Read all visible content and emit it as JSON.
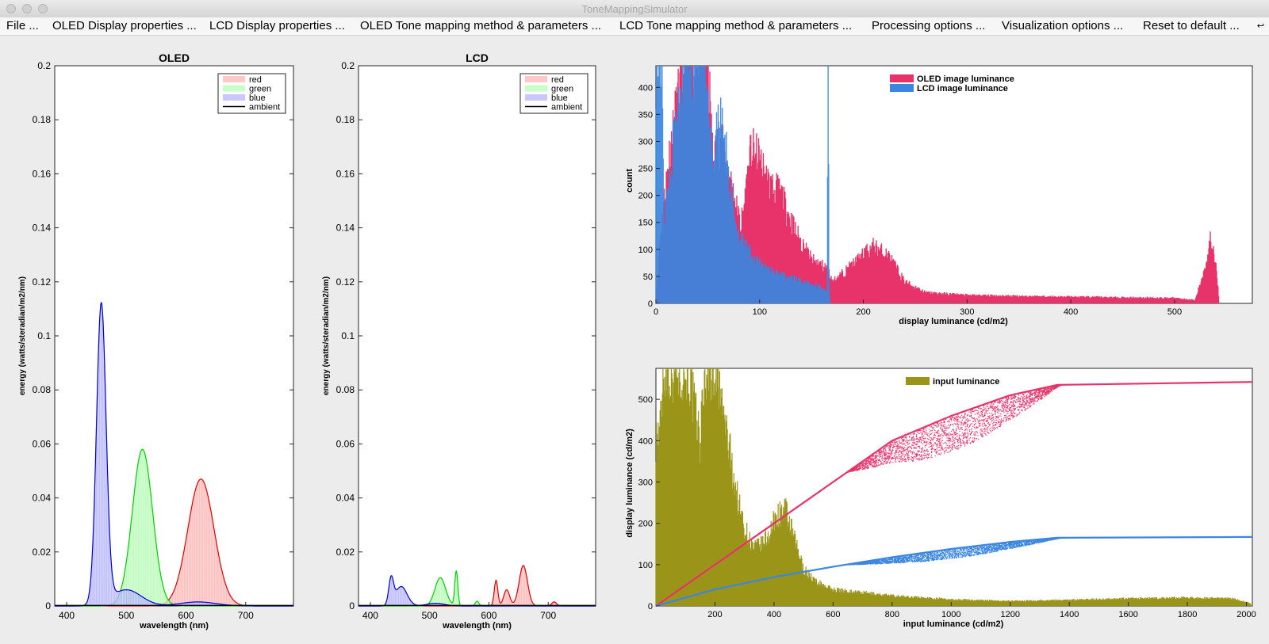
{
  "window": {
    "title": "ToneMappingSimulator"
  },
  "menu": {
    "items": [
      "File ...",
      "OLED Display properties ...",
      "LCD Display properties ...",
      "OLED Tone mapping method & parameters ...",
      "LCD Tone mapping method & parameters ...",
      "Processing options ...",
      "Visualization options ...",
      "Reset to default ..."
    ],
    "more": "↩"
  },
  "colors": {
    "red_fill": "#ffc8c8",
    "green_fill": "#c8ffc8",
    "blue_fill": "#c8c8ff",
    "oled": "#e8336a",
    "lcd": "#3a86e0",
    "input": "#9a9518"
  },
  "chart_data": [
    {
      "type": "area",
      "title": "OLED",
      "xlabel": "wavelength (nm)",
      "ylabel": "energy (watts/steradian/m2/nm)",
      "xlim": [
        380,
        780
      ],
      "ylim": [
        0,
        0.2
      ],
      "xticks": [
        "400",
        "500",
        "600",
        "700"
      ],
      "yticks": [
        "0",
        "0.02",
        "0.04",
        "0.06",
        "0.08",
        "0.1",
        "0.12",
        "0.14",
        "0.16",
        "0.18",
        "0.2"
      ],
      "legend": [
        "red",
        "green",
        "blue",
        "ambient"
      ],
      "legend_position": "top-right",
      "series": [
        {
          "name": "red",
          "color": "#e00000",
          "peaks": [
            {
              "center": 625,
              "height": 0.047,
              "width": 22
            }
          ]
        },
        {
          "name": "green",
          "color": "#00d000",
          "peaks": [
            {
              "center": 527,
              "height": 0.058,
              "width": 17
            }
          ]
        },
        {
          "name": "blue",
          "color": "#0000cc",
          "peaks": [
            {
              "center": 458,
              "height": 0.111,
              "width": 8
            },
            {
              "center": 500,
              "height": 0.006,
              "width": 25
            },
            {
              "center": 620,
              "height": 0.0015,
              "width": 30
            }
          ]
        },
        {
          "name": "ambient",
          "color": "#000000",
          "peaks": []
        }
      ]
    },
    {
      "type": "area",
      "title": "LCD",
      "xlabel": "wavelength (nm)",
      "ylabel": "energy (watts/steradian/m2/nm)",
      "xlim": [
        380,
        780
      ],
      "ylim": [
        0,
        0.2
      ],
      "xticks": [
        "400",
        "500",
        "600",
        "700"
      ],
      "yticks": [
        "0",
        "0.02",
        "0.04",
        "0.06",
        "0.08",
        "0.1",
        "0.12",
        "0.14",
        "0.16",
        "0.18",
        "0.2"
      ],
      "legend": [
        "red",
        "green",
        "blue",
        "ambient"
      ],
      "legend_position": "top-right",
      "series": [
        {
          "name": "red",
          "color": "#e00000",
          "peaks": [
            {
              "center": 612,
              "height": 0.0095,
              "width": 3
            },
            {
              "center": 630,
              "height": 0.006,
              "width": 5
            },
            {
              "center": 658,
              "height": 0.015,
              "width": 7
            },
            {
              "center": 710,
              "height": 0.0015,
              "width": 4
            }
          ]
        },
        {
          "name": "green",
          "color": "#00d000",
          "peaks": [
            {
              "center": 518,
              "height": 0.0105,
              "width": 9
            },
            {
              "center": 545,
              "height": 0.013,
              "width": 2.5
            },
            {
              "center": 580,
              "height": 0.0018,
              "width": 3
            }
          ]
        },
        {
          "name": "blue",
          "color": "#0000cc",
          "peaks": [
            {
              "center": 435,
              "height": 0.0095,
              "width": 4
            },
            {
              "center": 452,
              "height": 0.0072,
              "width": 10
            },
            {
              "center": 510,
              "height": 0.001,
              "width": 15
            }
          ]
        },
        {
          "name": "ambient",
          "color": "#000000",
          "peaks": []
        }
      ]
    },
    {
      "type": "bar",
      "xlabel": "display luminance (cd/m2)",
      "ylabel": "count",
      "xlim": [
        0,
        575
      ],
      "ylim": [
        0,
        440
      ],
      "xticks": [
        "0",
        "100",
        "200",
        "300",
        "400",
        "500"
      ],
      "yticks": [
        "0",
        "50",
        "100",
        "150",
        "200",
        "250",
        "300",
        "350",
        "400"
      ],
      "legend": [
        "OLED image luminance",
        "LCD image luminance"
      ],
      "legend_position": "top-center",
      "series": [
        {
          "name": "OLED image luminance",
          "color": "#e8336a",
          "profile": [
            [
              0,
              0
            ],
            [
              4,
              120
            ],
            [
              12,
              260
            ],
            [
              22,
              380
            ],
            [
              32,
              440
            ],
            [
              50,
              440
            ],
            [
              55,
              260
            ],
            [
              62,
              300
            ],
            [
              70,
              240
            ],
            [
              82,
              140
            ],
            [
              92,
              280
            ],
            [
              100,
              260
            ],
            [
              108,
              220
            ],
            [
              120,
              200
            ],
            [
              135,
              130
            ],
            [
              150,
              80
            ],
            [
              165,
              65
            ],
            [
              170,
              40
            ],
            [
              180,
              55
            ],
            [
              195,
              80
            ],
            [
              210,
              105
            ],
            [
              225,
              85
            ],
            [
              240,
              40
            ],
            [
              260,
              20
            ],
            [
              300,
              15
            ],
            [
              400,
              12
            ],
            [
              500,
              10
            ],
            [
              520,
              6
            ],
            [
              530,
              70
            ],
            [
              535,
              120
            ],
            [
              540,
              80
            ],
            [
              543,
              0
            ]
          ]
        },
        {
          "name": "LCD image luminance",
          "color": "#3a86e0",
          "profile": [
            [
              0,
              440
            ],
            [
              6,
              440
            ],
            [
              8,
              150
            ],
            [
              14,
              240
            ],
            [
              22,
              390
            ],
            [
              30,
              440
            ],
            [
              48,
              440
            ],
            [
              55,
              250
            ],
            [
              60,
              330
            ],
            [
              64,
              350
            ],
            [
              70,
              230
            ],
            [
              80,
              120
            ],
            [
              95,
              80
            ],
            [
              115,
              55
            ],
            [
              140,
              40
            ],
            [
              160,
              30
            ],
            [
              165,
              20
            ],
            [
              166,
              440
            ],
            [
              167,
              30
            ],
            [
              168,
              0
            ]
          ]
        }
      ]
    },
    {
      "type": "scatter",
      "xlabel": "input luminance (cd/m2)",
      "ylabel": "display luminance (cd/m2)",
      "xlim": [
        0,
        2020
      ],
      "ylim": [
        0,
        575
      ],
      "xticks": [
        "200",
        "400",
        "600",
        "800",
        "1000",
        "1200",
        "1400",
        "1600",
        "1800",
        "2000"
      ],
      "yticks": [
        "0",
        "100",
        "200",
        "300",
        "400",
        "500"
      ],
      "legend": [
        "input luminance"
      ],
      "legend_position": "top-center",
      "series": [
        {
          "name": "OLED",
          "color": "#e8336a",
          "curve": [
            [
              0,
              0
            ],
            [
              200,
              100
            ],
            [
              400,
              200
            ],
            [
              600,
              300
            ],
            [
              800,
              400
            ],
            [
              1000,
              460
            ],
            [
              1200,
              510
            ],
            [
              1360,
              535
            ],
            [
              2020,
              542
            ]
          ],
          "spread_max": 85
        },
        {
          "name": "LCD",
          "color": "#3a86e0",
          "curve": [
            [
              0,
              0
            ],
            [
              200,
              40
            ],
            [
              400,
              70
            ],
            [
              600,
              95
            ],
            [
              800,
              118
            ],
            [
              1000,
              138
            ],
            [
              1200,
              155
            ],
            [
              1360,
              165
            ],
            [
              2020,
              167
            ]
          ],
          "spread_max": 22
        },
        {
          "name": "input luminance",
          "color": "#9a9518",
          "profile": [
            [
              0,
              410
            ],
            [
              15,
              430
            ],
            [
              25,
              575
            ],
            [
              110,
              575
            ],
            [
              130,
              480
            ],
            [
              150,
              400
            ],
            [
              165,
              575
            ],
            [
              200,
              575
            ],
            [
              220,
              500
            ],
            [
              240,
              420
            ],
            [
              260,
              330
            ],
            [
              280,
              250
            ],
            [
              300,
              190
            ],
            [
              330,
              140
            ],
            [
              360,
              150
            ],
            [
              380,
              170
            ],
            [
              410,
              220
            ],
            [
              440,
              230
            ],
            [
              470,
              160
            ],
            [
              500,
              90
            ],
            [
              540,
              60
            ],
            [
              600,
              40
            ],
            [
              800,
              25
            ],
            [
              1000,
              16
            ],
            [
              1200,
              12
            ],
            [
              1400,
              15
            ],
            [
              1600,
              18
            ],
            [
              1800,
              20
            ],
            [
              1950,
              18
            ],
            [
              2010,
              8
            ],
            [
              2020,
              0
            ]
          ]
        }
      ]
    }
  ]
}
